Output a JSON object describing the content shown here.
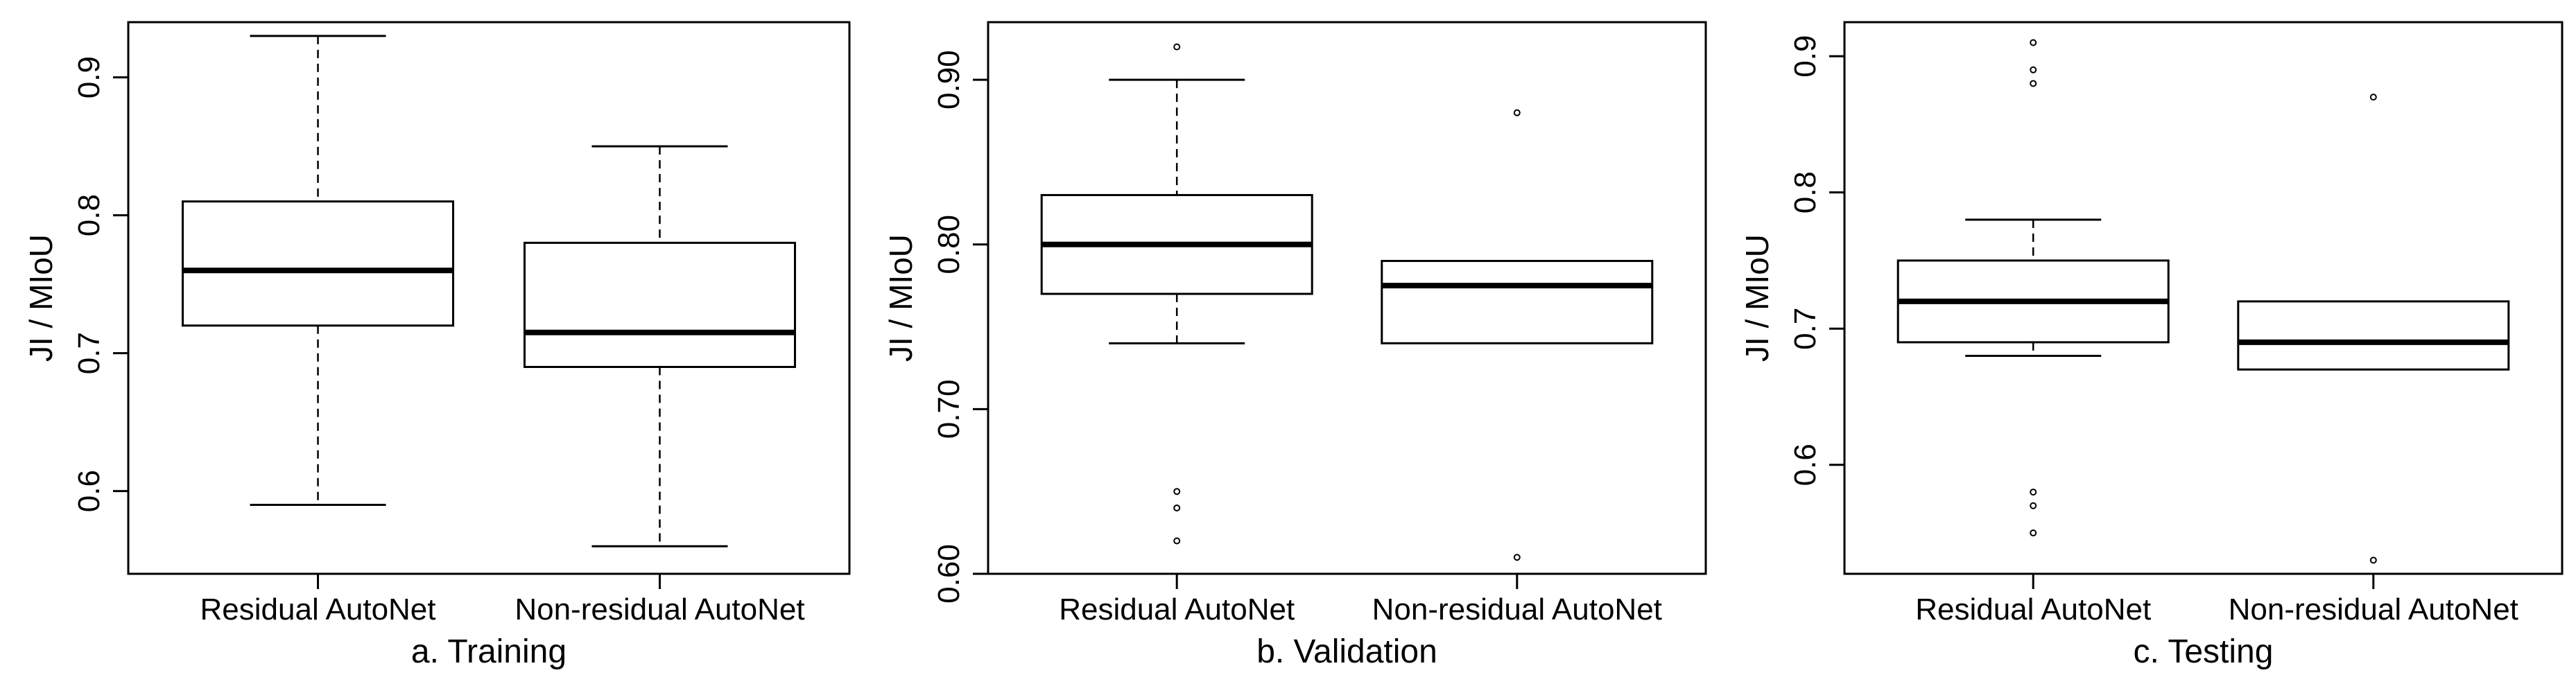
{
  "figure": {
    "ylabel": "JI / MIoU",
    "categories": [
      "Residual AutoNet",
      "Non-residual AutoNet"
    ]
  },
  "chart_data": [
    {
      "type": "boxplot",
      "title": "a. Training",
      "xlabel": "a. Training",
      "ylabel": "JI / MIoU",
      "categories": [
        "Residual AutoNet",
        "Non-residual AutoNet"
      ],
      "ylim": [
        0.54,
        0.94
      ],
      "yticks": [
        0.6,
        0.7,
        0.8,
        0.9
      ],
      "ytick_labels": [
        "0.6",
        "0.7",
        "0.8",
        "0.9"
      ],
      "boxes": [
        {
          "name": "Residual AutoNet",
          "whisker_low": 0.59,
          "q1": 0.72,
          "median": 0.76,
          "q3": 0.81,
          "whisker_high": 0.93,
          "outliers": []
        },
        {
          "name": "Non-residual AutoNet",
          "whisker_low": 0.56,
          "q1": 0.69,
          "median": 0.715,
          "q3": 0.78,
          "whisker_high": 0.85,
          "outliers": []
        }
      ]
    },
    {
      "type": "boxplot",
      "title": "b. Validation",
      "xlabel": "b. Validation",
      "ylabel": "JI / MIoU",
      "categories": [
        "Residual AutoNet",
        "Non-residual AutoNet"
      ],
      "ylim": [
        0.6,
        0.935
      ],
      "yticks": [
        0.6,
        0.7,
        0.8,
        0.9
      ],
      "ytick_labels": [
        "0.60",
        "0.70",
        "0.80",
        "0.90"
      ],
      "boxes": [
        {
          "name": "Residual AutoNet",
          "whisker_low": 0.74,
          "q1": 0.77,
          "median": 0.8,
          "q3": 0.83,
          "whisker_high": 0.9,
          "outliers": [
            0.92,
            0.65,
            0.64,
            0.62
          ]
        },
        {
          "name": "Non-residual AutoNet",
          "whisker_low": 0.74,
          "q1": 0.74,
          "median": 0.775,
          "q3": 0.79,
          "whisker_high": 0.79,
          "outliers": [
            0.88,
            0.61
          ]
        }
      ]
    },
    {
      "type": "boxplot",
      "title": "c. Testing",
      "xlabel": "c. Testing",
      "ylabel": "JI / MIoU",
      "categories": [
        "Residual AutoNet",
        "Non-residual AutoNet"
      ],
      "ylim": [
        0.52,
        0.925
      ],
      "yticks": [
        0.6,
        0.7,
        0.8,
        0.9
      ],
      "ytick_labels": [
        "0.6",
        "0.7",
        "0.8",
        "0.9"
      ],
      "boxes": [
        {
          "name": "Residual AutoNet",
          "whisker_low": 0.68,
          "q1": 0.69,
          "median": 0.72,
          "q3": 0.75,
          "whisker_high": 0.78,
          "outliers": [
            0.91,
            0.89,
            0.88,
            0.58,
            0.57,
            0.55
          ]
        },
        {
          "name": "Non-residual AutoNet",
          "whisker_low": 0.67,
          "q1": 0.67,
          "median": 0.69,
          "q3": 0.72,
          "whisker_high": 0.72,
          "outliers": [
            0.87,
            0.53
          ]
        }
      ]
    }
  ]
}
